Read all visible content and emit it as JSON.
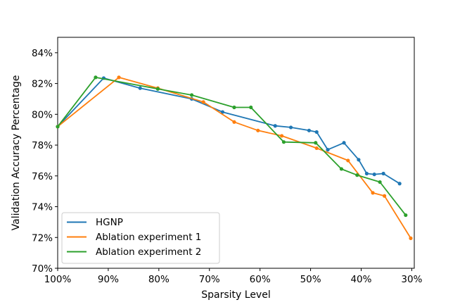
{
  "chart_data": {
    "type": "line",
    "title": "",
    "xlabel": "Sparsity Level",
    "ylabel": "Validation Accuracy Percentage",
    "xlim": [
      100,
      29.5
    ],
    "ylim": [
      70,
      85
    ],
    "x_ticks": [
      100,
      90,
      80,
      70,
      60,
      50,
      40,
      30
    ],
    "x_tick_labels": [
      "100%",
      "90%",
      "80%",
      "70%",
      "60%",
      "50%",
      "40%",
      "30%"
    ],
    "y_ticks": [
      70,
      72,
      74,
      76,
      78,
      80,
      82,
      84
    ],
    "y_tick_labels": [
      "70%",
      "72%",
      "74%",
      "76%",
      "78%",
      "80%",
      "82%",
      "84%"
    ],
    "grid": false,
    "legend_position": "lower-left",
    "series": [
      {
        "name": "HGNP",
        "color": "#1f77b4",
        "x": [
          100,
          90.9,
          83.7,
          73.5,
          67.4,
          57.0,
          53.9,
          50.3,
          48.8,
          46.6,
          43.4,
          40.5,
          38.9,
          37.4,
          35.6,
          32.4
        ],
        "y": [
          79.2,
          82.35,
          81.7,
          81.0,
          80.15,
          79.25,
          79.15,
          78.95,
          78.85,
          77.7,
          78.15,
          77.05,
          76.15,
          76.1,
          76.15,
          75.5
        ]
      },
      {
        "name": "Ablation experiment 1",
        "color": "#ff7f0e",
        "x": [
          100,
          87.9,
          80.2,
          71.2,
          65.1,
          60.4,
          55.7,
          48.8,
          42.6,
          37.7,
          35.4,
          30.2
        ],
        "y": [
          79.2,
          82.4,
          81.7,
          80.8,
          79.5,
          78.95,
          78.6,
          77.8,
          77.0,
          74.9,
          74.7,
          71.95
        ]
      },
      {
        "name": "Ablation experiment 2",
        "color": "#2ca02c",
        "x": [
          100,
          92.5,
          80.2,
          73.5,
          65.1,
          61.8,
          55.3,
          49.0,
          43.9,
          40.8,
          36.3,
          31.2
        ],
        "y": [
          79.2,
          82.4,
          81.65,
          81.25,
          80.45,
          80.45,
          78.2,
          78.15,
          76.45,
          76.05,
          75.6,
          73.45
        ]
      }
    ]
  }
}
